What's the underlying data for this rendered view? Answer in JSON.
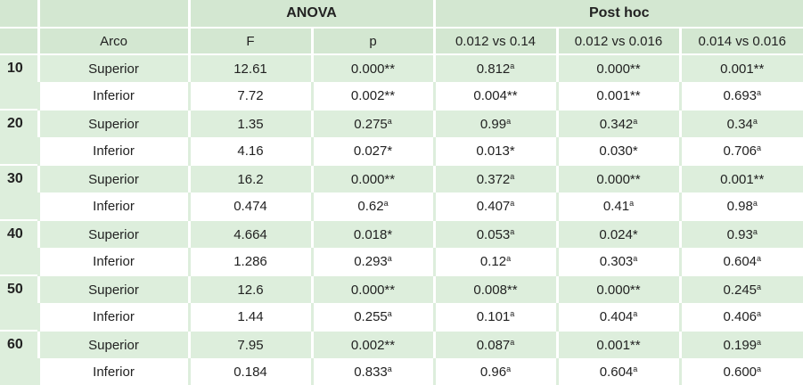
{
  "header": {
    "group_titles": [
      "ANOVA",
      "Post hoc"
    ],
    "columns": [
      "Arco",
      "F",
      "p",
      "0.012 vs 0.14",
      "0.012 vs 0.016",
      "0.014 vs 0.016"
    ]
  },
  "groups": [
    {
      "label": "10",
      "rows": [
        {
          "arco": "Superior",
          "cells": [
            {
              "text": "12.61"
            },
            {
              "text": "0.000**"
            },
            {
              "text": "0.812",
              "sup": "a"
            },
            {
              "text": "0.000**"
            },
            {
              "text": "0.001**"
            }
          ]
        },
        {
          "arco": "Inferior",
          "cells": [
            {
              "text": "7.72"
            },
            {
              "text": "0.002**"
            },
            {
              "text": "0.004**"
            },
            {
              "text": "0.001**"
            },
            {
              "text": "0.693",
              "sup": "a"
            }
          ]
        }
      ]
    },
    {
      "label": "20",
      "rows": [
        {
          "arco": "Superior",
          "cells": [
            {
              "text": "1.35"
            },
            {
              "text": "0.275",
              "sup": "a"
            },
            {
              "text": "0.99",
              "sup": "a"
            },
            {
              "text": "0.342",
              "sup": "a"
            },
            {
              "text": "0.34",
              "sup": "a"
            }
          ]
        },
        {
          "arco": "Inferior",
          "cells": [
            {
              "text": "4.16"
            },
            {
              "text": "0.027*"
            },
            {
              "text": "0.013*"
            },
            {
              "text": "0.030*"
            },
            {
              "text": "0.706",
              "sup": "a"
            }
          ]
        }
      ]
    },
    {
      "label": "30",
      "rows": [
        {
          "arco": "Superior",
          "cells": [
            {
              "text": "16.2"
            },
            {
              "text": "0.000**"
            },
            {
              "text": "0.372",
              "sup": "a"
            },
            {
              "text": "0.000**"
            },
            {
              "text": "0.001**"
            }
          ]
        },
        {
          "arco": "Inferior",
          "cells": [
            {
              "text": "0.474"
            },
            {
              "text": "0.62",
              "sup": "a"
            },
            {
              "text": "0.407",
              "sup": "a"
            },
            {
              "text": "0.41",
              "sup": "a"
            },
            {
              "text": "0.98",
              "sup": "a"
            }
          ]
        }
      ]
    },
    {
      "label": "40",
      "rows": [
        {
          "arco": "Superior",
          "cells": [
            {
              "text": "4.664"
            },
            {
              "text": "0.018*"
            },
            {
              "text": "0.053",
              "sup": "a"
            },
            {
              "text": "0.024*"
            },
            {
              "text": "0.93",
              "sup": "a"
            }
          ]
        },
        {
          "arco": "Inferior",
          "cells": [
            {
              "text": "1.286"
            },
            {
              "text": "0.293",
              "sup": "a"
            },
            {
              "text": "0.12",
              "sup": "a"
            },
            {
              "text": "0.303",
              "sup": "a"
            },
            {
              "text": "0.604",
              "sup": "a"
            }
          ]
        }
      ]
    },
    {
      "label": "50",
      "rows": [
        {
          "arco": "Superior",
          "cells": [
            {
              "text": "12.6"
            },
            {
              "text": "0.000**"
            },
            {
              "text": "0.008**"
            },
            {
              "text": "0.000**"
            },
            {
              "text": "0.245",
              "sup": "a"
            }
          ]
        },
        {
          "arco": "Inferior",
          "cells": [
            {
              "text": "1.44"
            },
            {
              "text": "0.255",
              "sup": "a"
            },
            {
              "text": "0.101",
              "sup": "a"
            },
            {
              "text": "0.404",
              "sup": "a"
            },
            {
              "text": "0.406",
              "sup": "a"
            }
          ]
        }
      ]
    },
    {
      "label": "60",
      "rows": [
        {
          "arco": "Superior",
          "cells": [
            {
              "text": "7.95"
            },
            {
              "text": "0.002**"
            },
            {
              "text": "0.087",
              "sup": "a"
            },
            {
              "text": "0.001**"
            },
            {
              "text": "0.199",
              "sup": "a"
            }
          ]
        },
        {
          "arco": "Inferior",
          "cells": [
            {
              "text": "0.184"
            },
            {
              "text": "0.833",
              "sup": "a"
            },
            {
              "text": "0.96",
              "sup": "a"
            },
            {
              "text": "0.604",
              "sup": "a"
            },
            {
              "text": "0.600",
              "sup": "a"
            }
          ]
        }
      ]
    }
  ]
}
